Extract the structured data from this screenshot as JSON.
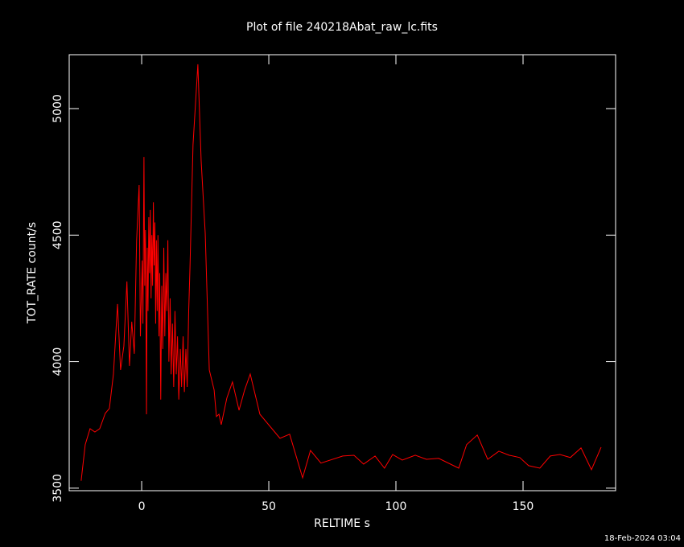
{
  "chart_data": {
    "type": "line",
    "title": "Plot of file 240218Abat_raw_lc.fits",
    "x_label": "RELTIME  s",
    "y_label": "TOT_RATE  count/s",
    "timestamp": "18-Feb-2024 03:04",
    "color": "#ff0000",
    "x": [
      -23.8,
      -22.2,
      -20.3,
      -18.4,
      -16.5,
      -14.3,
      -12.7,
      -11.1,
      -9.5,
      -8.3,
      -7,
      -5.8,
      -4.8,
      -3.9,
      -2.9,
      -2,
      -1,
      -0.5,
      0.2,
      0.5,
      0.9,
      1.2,
      1.5,
      1.9,
      2.2,
      2.5,
      2.8,
      3.1,
      3.4,
      3.7,
      4.0,
      4.3,
      4.6,
      4.9,
      5.2,
      5.5,
      5.8,
      6.1,
      6.4,
      6.8,
      7.1,
      7.5,
      7.9,
      8.3,
      8.7,
      9.1,
      9.5,
      9.9,
      10.3,
      10.7,
      11.2,
      11.6,
      12.1,
      12.6,
      13.1,
      13.6,
      14.1,
      14.6,
      15.2,
      15.7,
      16.3,
      16.8,
      17.4,
      17.9,
      18.5,
      19.0,
      20.2,
      22.1,
      23.4,
      25,
      26.6,
      28.5,
      29.4,
      30.4,
      31.3,
      33.5,
      35.7,
      38.3,
      40.5,
      42.7,
      46.5,
      54.4,
      58.2,
      63.3,
      66.4,
      70.5,
      79.1,
      83.5,
      87.3,
      91.8,
      95.5,
      98.7,
      102.5,
      107.6,
      112,
      116.8,
      124.7,
      127.8,
      132,
      136.1,
      140.5,
      144.6,
      148.7,
      152.2,
      156.6,
      160.7,
      164.5,
      168.6,
      172.8,
      176.9,
      180.7
    ],
    "values": [
      3529,
      3672,
      3735,
      3722,
      3735,
      3796,
      3815,
      3951,
      4228,
      3967,
      4062,
      4317,
      3983,
      4158,
      4031,
      4476,
      4698,
      4100,
      4400,
      4150,
      4809,
      4300,
      4520,
      3792,
      4450,
      4200,
      4571,
      4350,
      4600,
      4250,
      4500,
      4300,
      4630,
      4380,
      4550,
      4150,
      4480,
      4200,
      4500,
      4100,
      4350,
      3850,
      4300,
      4050,
      4450,
      4100,
      4350,
      4200,
      4480,
      4000,
      4250,
      3950,
      4150,
      3900,
      4200,
      3950,
      4100,
      3850,
      4050,
      3900,
      4100,
      3880,
      4050,
      3900,
      4200,
      4372,
      4857,
      5175,
      4793,
      4507,
      3967,
      3888,
      3783,
      3792,
      3751,
      3856,
      3920,
      3808,
      3888,
      3951,
      3792,
      3697,
      3713,
      3541,
      3649,
      3599,
      3627,
      3630,
      3595,
      3627,
      3579,
      3633,
      3611,
      3630,
      3614,
      3618,
      3579,
      3672,
      3710,
      3614,
      3646,
      3630,
      3621,
      3589,
      3579,
      3627,
      3633,
      3621,
      3659,
      3573,
      3662
    ],
    "xlim": [
      -28.5,
      186.4
    ],
    "xticks": [
      0,
      50,
      100,
      150
    ],
    "ylim": [
      3490,
      5213
    ],
    "yticks": [
      3500,
      4000,
      4500,
      5000
    ]
  }
}
